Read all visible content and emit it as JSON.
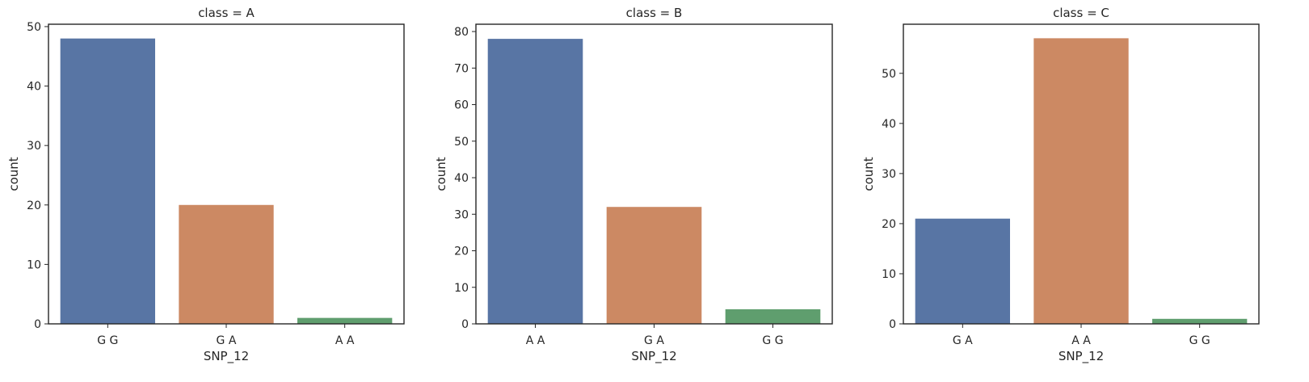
{
  "chart_data": [
    {
      "type": "bar",
      "title": "class = A",
      "xlabel": "SNP_12",
      "ylabel": "count",
      "categories": [
        "G G",
        "G A",
        "A A"
      ],
      "values": [
        48,
        20,
        1
      ],
      "ylim": [
        0,
        50.4
      ],
      "yticks": [
        0,
        10,
        20,
        30,
        40,
        50
      ],
      "colors": [
        "#5875a4",
        "#cc8963",
        "#5f9e6e"
      ],
      "grid": false
    },
    {
      "type": "bar",
      "title": "class = B",
      "xlabel": "SNP_12",
      "ylabel": "count",
      "categories": [
        "A A",
        "G A",
        "G G"
      ],
      "values": [
        78,
        32,
        4
      ],
      "ylim": [
        0,
        82
      ],
      "yticks": [
        0,
        10,
        20,
        30,
        40,
        50,
        60,
        70,
        80
      ],
      "colors": [
        "#5875a4",
        "#cc8963",
        "#5f9e6e"
      ],
      "grid": false
    },
    {
      "type": "bar",
      "title": "class = C",
      "xlabel": "SNP_12",
      "ylabel": "count",
      "categories": [
        "G A",
        "A A",
        "G G"
      ],
      "values": [
        21,
        57,
        1
      ],
      "ylim": [
        0,
        59.8
      ],
      "yticks": [
        0,
        10,
        20,
        30,
        40,
        50
      ],
      "colors": [
        "#5875a4",
        "#cc8963",
        "#5f9e6e"
      ],
      "grid": false
    }
  ]
}
